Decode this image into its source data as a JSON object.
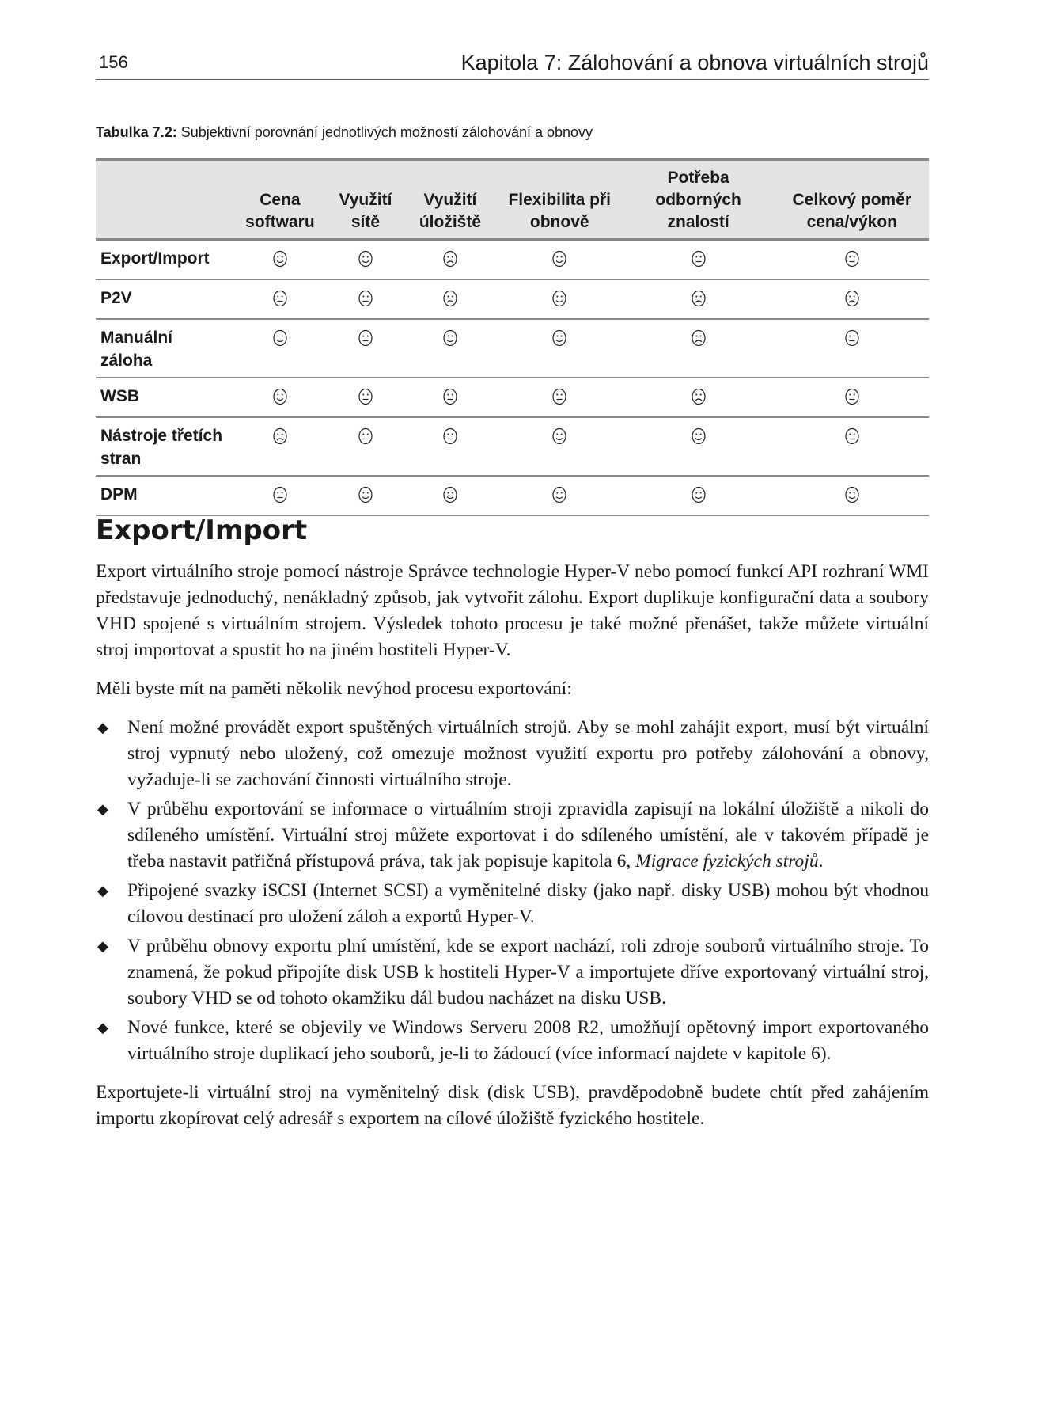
{
  "header": {
    "page_number": "156",
    "chapter": "Kapitola 7: Zálohování a obnova virtuálních strojů"
  },
  "caption": {
    "label": "Tabulka 7.2:",
    "text": " Subjektivní porovnání jednotlivých možností zálohování a obnovy"
  },
  "table": {
    "columns": [
      "",
      "Cena softwaru",
      "Využití sítě",
      "Využití úložiště",
      "Flexibilita při obnově",
      "Potřeba odborných znalostí",
      "Celkový poměr cena/výkon"
    ],
    "legend_icons": {
      "smile": "smiling-face-icon",
      "neutral": "neutral-face-icon",
      "frown": "frowning-face-icon"
    },
    "rows": [
      {
        "label": "Export/Import",
        "ratings": [
          "smile",
          "smile",
          "frown",
          "smile",
          "neutral",
          "neutral"
        ]
      },
      {
        "label": "P2V",
        "ratings": [
          "neutral",
          "neutral",
          "frown",
          "smile",
          "frown",
          "frown"
        ]
      },
      {
        "label": "Manuální záloha",
        "ratings": [
          "smile",
          "neutral",
          "smile",
          "smile",
          "frown",
          "neutral"
        ]
      },
      {
        "label": "WSB",
        "ratings": [
          "smile",
          "neutral",
          "neutral",
          "neutral",
          "frown",
          "neutral"
        ]
      },
      {
        "label": "Nástroje třetích stran",
        "ratings": [
          "frown",
          "neutral",
          "neutral",
          "smile",
          "smile",
          "neutral"
        ]
      },
      {
        "label": "DPM",
        "ratings": [
          "neutral",
          "smile",
          "smile",
          "smile",
          "smile",
          "smile"
        ]
      }
    ]
  },
  "section": {
    "heading": "Export/Import",
    "para1": "Export virtuálního stroje pomocí nástroje Správce technologie Hyper-V nebo pomocí funkcí API rozhraní WMI představuje jednoduchý, nenákladný způsob, jak vytvořit zálohu. Export duplikuje konfigurační data a soubory VHD spojené s virtuálním strojem. Výsledek tohoto procesu je také možné přenášet, takže můžete virtuální stroj importovat a spustit ho na jiném hostiteli Hyper-V.",
    "para2": "Měli byste mít na paměti několik nevýhod procesu exportování:",
    "bullets": [
      {
        "text": "Není možné provádět export spuštěných virtuálních strojů. Aby se mohl zahájit export, musí být virtuální stroj vypnutý nebo uložený, což omezuje možnost využití exportu pro potřeby zálohování a obnovy, vyžaduje-li se zachování činnosti virtuálního stroje."
      },
      {
        "text": "V průběhu exportování se informace o virtuálním stroji zpravidla zapisují na lokální úložiště a nikoli do sdíleného umístění. Virtuální stroj můžete exportovat i do sdíleného umístění, ale v takovém případě je třeba nastavit patřičná přístupová práva, tak jak popisuje kapitola 6, ",
        "italic": "Migrace fyzických strojů",
        "after": "."
      },
      {
        "text": "Připojené svazky iSCSI (Internet SCSI) a vyměnitelné disky (jako např. disky USB) mohou být vhodnou cílovou destinací pro uložení záloh a exportů Hyper-V."
      },
      {
        "text": "V průběhu obnovy exportu plní umístění, kde se export nachází, roli zdroje souborů virtuálního stroje. To znamená, že pokud připojíte disk USB k hostiteli Hyper-V a importujete dříve exportovaný virtuální stroj, soubory VHD se od tohoto okamžiku dál budou nacházet na disku USB."
      },
      {
        "text": "Nové funkce, které se objevily ve Windows Serveru 2008 R2, umožňují opětovný import exportovaného virtuálního stroje duplikací jeho souborů, je-li to žádoucí (více informací najdete v kapitole 6)."
      }
    ],
    "bullet_icon": "diamond-bullet-icon",
    "para3": "Exportujete-li virtuální stroj na vyměnitelný disk (disk USB), pravděpodobně budete chtít před zahájením importu zkopírovat celý adresář s exportem na cílové úložiště fyzického hostitele."
  }
}
